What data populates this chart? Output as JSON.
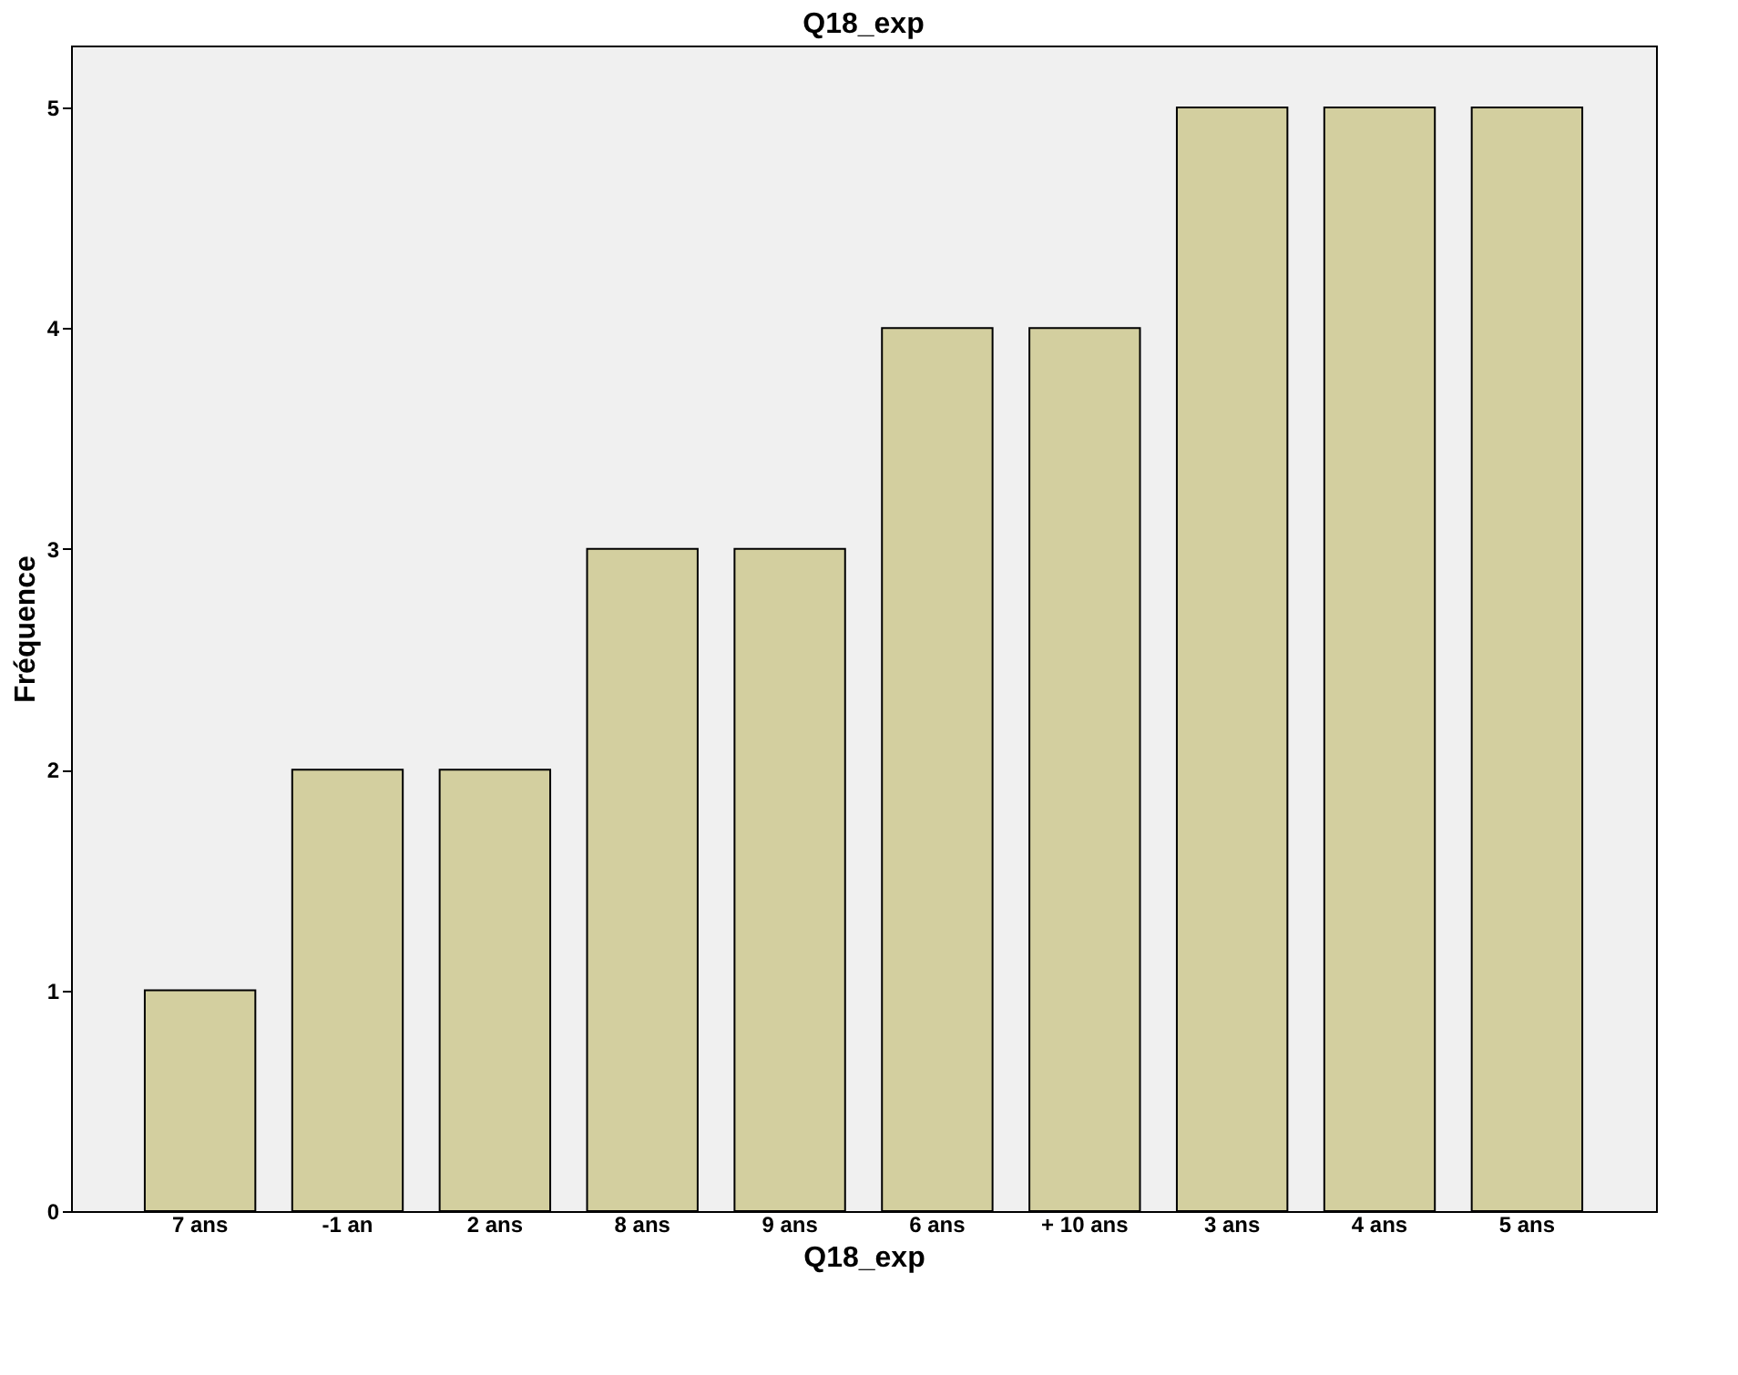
{
  "chart_data": {
    "type": "bar",
    "title": "Q18_exp",
    "xlabel": "Q18_exp",
    "ylabel": "Fréquence",
    "categories": [
      "7 ans",
      "-1 an",
      "2 ans",
      "8 ans",
      "9 ans",
      "6 ans",
      "+ 10 ans",
      "3 ans",
      "4 ans",
      "5 ans"
    ],
    "values": [
      1,
      2,
      2,
      3,
      3,
      4,
      4,
      5,
      5,
      5
    ],
    "color": "#d3cf9f",
    "ylim": [
      0,
      5.28
    ],
    "yticks": [
      0,
      1,
      2,
      3,
      4,
      5
    ],
    "grid": false
  }
}
